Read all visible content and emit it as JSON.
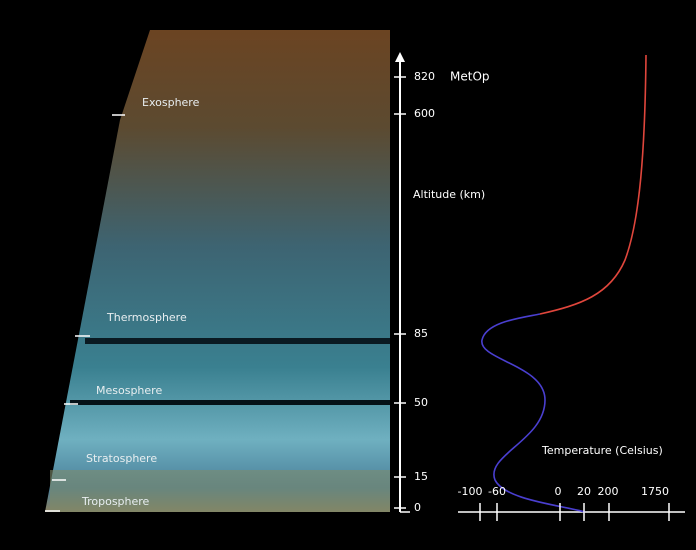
{
  "layers": [
    "Exosphere",
    "Thermosphere",
    "Mesosphere",
    "Stratosphere",
    "Troposphere"
  ],
  "satellite": "MetOp",
  "altitude_axis": {
    "label": "Altitude (km)",
    "ticks": [
      820,
      600,
      85,
      50,
      15,
      0
    ]
  },
  "temperature_axis": {
    "label": "Temperature (Celsius)",
    "ticks": [
      -100,
      -60,
      0,
      20,
      200,
      1750
    ]
  }
}
